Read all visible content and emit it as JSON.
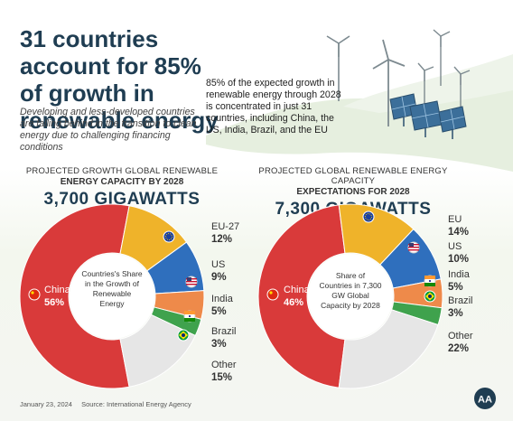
{
  "header": {
    "title": "31 countries account for 85% of growth in renewable energy",
    "subtitle": "Developing and less-developed countries are falling behind in the transition to clean energy due to challenging financing conditions",
    "summary": "85% of the expected growth in renewable energy through 2028 is concentrated in just 31 countries, including China, the US, India, Brazil, and the EU"
  },
  "footer": {
    "date": "January 23, 2024",
    "source": "Source: International Energy Agency",
    "logo_text": "AA"
  },
  "chart_data": [
    {
      "type": "pie",
      "title_line1": "PROJECTED GROWTH GLOBAL RENEWABLE",
      "title_line2": "ENERGY CAPACITY BY 2028",
      "total": "3,700 GIGAWATTS",
      "center_label": "Countries's Share in the Growth of Renewable Energy",
      "categories": [
        "China",
        "EU-27",
        "US",
        "India",
        "Brazil",
        "Other"
      ],
      "values": [
        56,
        12,
        9,
        5,
        3,
        15
      ],
      "value_labels": [
        "56%",
        "12%",
        "9%",
        "5%",
        "3%",
        "15%"
      ],
      "colors": [
        "#d93a3a",
        "#efb32a",
        "#2f6fbd",
        "#ee8a4a",
        "#3fa24d",
        "#e6e6e6"
      ]
    },
    {
      "type": "pie",
      "title_line1": "PROJECTED GLOBAL RENEWABLE ENERGY CAPACITY",
      "title_line2": "EXPECTATIONS FOR 2028",
      "total": "7,300 GIGAWATTS",
      "center_label": "Share of Countries in 7,300 GW Global Capacity by 2028",
      "categories": [
        "China",
        "EU",
        "US",
        "India",
        "Brazil",
        "Other"
      ],
      "values": [
        46,
        14,
        10,
        5,
        3,
        22
      ],
      "value_labels": [
        "46%",
        "14%",
        "10%",
        "5%",
        "3%",
        "22%"
      ],
      "colors": [
        "#d93a3a",
        "#efb32a",
        "#2f6fbd",
        "#ee8a4a",
        "#3fa24d",
        "#e6e6e6"
      ]
    }
  ]
}
